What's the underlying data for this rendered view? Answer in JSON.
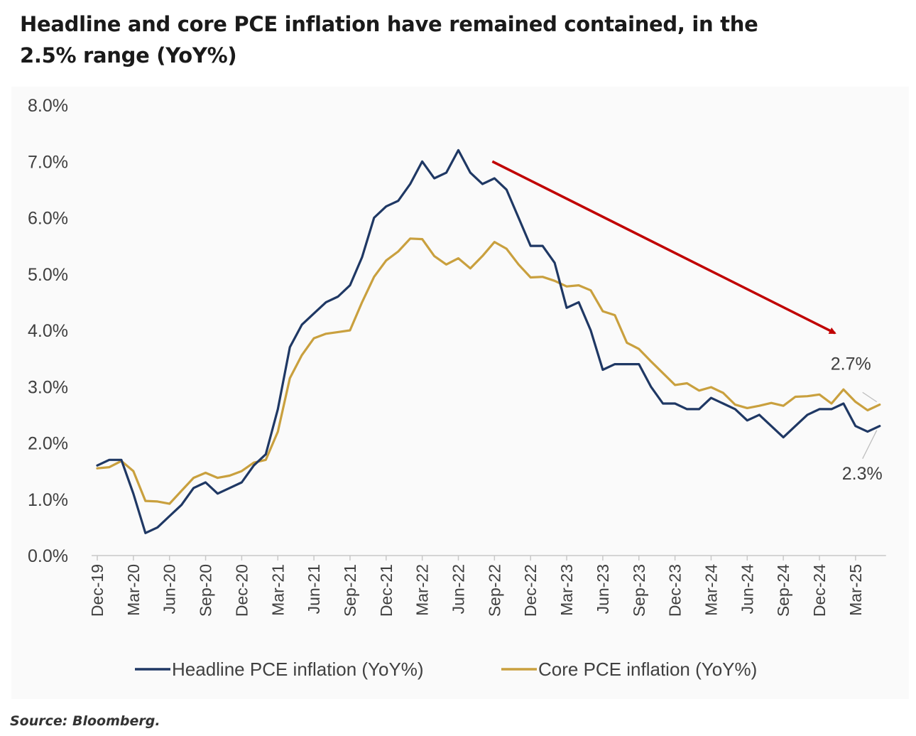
{
  "title": "Headline and core PCE inflation have remained contained, in the 2.5% range (YoY%)",
  "source": "Source: Bloomberg.",
  "chart_data": {
    "type": "line",
    "ylim": [
      0,
      8
    ],
    "yticks": [
      "0.0%",
      "1.0%",
      "2.0%",
      "3.0%",
      "4.0%",
      "5.0%",
      "6.0%",
      "7.0%",
      "8.0%"
    ],
    "xticks": [
      "Dec-19",
      "Mar-20",
      "Jun-20",
      "Sep-20",
      "Dec-20",
      "Mar-21",
      "Jun-21",
      "Sep-21",
      "Dec-21",
      "Mar-22",
      "Jun-22",
      "Sep-22",
      "Dec-22",
      "Mar-23",
      "Jun-23",
      "Sep-23",
      "Dec-23",
      "Mar-24",
      "Jun-24",
      "Sep-24",
      "Dec-24",
      "Mar-25"
    ],
    "x": [
      "Dec-19",
      "Jan-20",
      "Feb-20",
      "Mar-20",
      "Apr-20",
      "May-20",
      "Jun-20",
      "Jul-20",
      "Aug-20",
      "Sep-20",
      "Oct-20",
      "Nov-20",
      "Dec-20",
      "Jan-21",
      "Feb-21",
      "Mar-21",
      "Apr-21",
      "May-21",
      "Jun-21",
      "Jul-21",
      "Aug-21",
      "Sep-21",
      "Oct-21",
      "Nov-21",
      "Dec-21",
      "Jan-22",
      "Feb-22",
      "Mar-22",
      "Apr-22",
      "May-22",
      "Jun-22",
      "Jul-22",
      "Aug-22",
      "Sep-22",
      "Oct-22",
      "Nov-22",
      "Dec-22",
      "Jan-23",
      "Feb-23",
      "Mar-23",
      "Apr-23",
      "May-23",
      "Jun-23",
      "Jul-23",
      "Aug-23",
      "Sep-23",
      "Oct-23",
      "Nov-23",
      "Dec-23",
      "Jan-24",
      "Feb-24",
      "Mar-24",
      "Apr-24",
      "May-24",
      "Jun-24",
      "Jul-24",
      "Aug-24",
      "Sep-24",
      "Oct-24",
      "Nov-24",
      "Dec-24",
      "Jan-25",
      "Feb-25",
      "Mar-25",
      "Apr-25",
      "May-25"
    ],
    "series": [
      {
        "name": "Headline PCE inflation (YoY%)",
        "color": "#1f3864",
        "values": [
          1.6,
          1.7,
          1.7,
          1.1,
          0.4,
          0.5,
          0.7,
          0.9,
          1.2,
          1.3,
          1.1,
          1.2,
          1.3,
          1.6,
          1.8,
          2.6,
          3.7,
          4.1,
          4.3,
          4.5,
          4.6,
          4.8,
          5.3,
          6.0,
          6.2,
          6.3,
          6.6,
          7.0,
          6.7,
          6.8,
          7.2,
          6.8,
          6.6,
          6.7,
          6.5,
          6.0,
          5.5,
          5.5,
          5.2,
          4.4,
          4.5,
          4.0,
          3.3,
          3.4,
          3.4,
          3.4,
          3.0,
          2.7,
          2.7,
          2.6,
          2.6,
          2.8,
          2.7,
          2.6,
          2.4,
          2.5,
          2.3,
          2.1,
          2.3,
          2.5,
          2.6,
          2.6,
          2.7,
          2.3,
          2.2,
          2.3
        ]
      },
      {
        "name": "Core PCE inflation (YoY%)",
        "color": "#c9a03e",
        "values": [
          1.55,
          1.57,
          1.68,
          1.5,
          0.97,
          0.96,
          0.92,
          1.15,
          1.38,
          1.47,
          1.38,
          1.42,
          1.5,
          1.65,
          1.7,
          2.2,
          3.15,
          3.56,
          3.86,
          3.94,
          3.97,
          4.0,
          4.5,
          4.95,
          5.24,
          5.4,
          5.63,
          5.62,
          5.32,
          5.17,
          5.28,
          5.1,
          5.32,
          5.57,
          5.45,
          5.17,
          4.94,
          4.95,
          4.88,
          4.78,
          4.8,
          4.71,
          4.34,
          4.27,
          3.78,
          3.67,
          3.45,
          3.24,
          3.03,
          3.06,
          2.93,
          2.99,
          2.89,
          2.68,
          2.62,
          2.66,
          2.71,
          2.66,
          2.82,
          2.83,
          2.86,
          2.7,
          2.95,
          2.73,
          2.58,
          2.68
        ]
      }
    ],
    "annotations": {
      "core_last_label": "2.7%",
      "headline_last_label": "2.3%",
      "trend_arrow_color": "#c00000"
    },
    "legend": "bottom"
  }
}
